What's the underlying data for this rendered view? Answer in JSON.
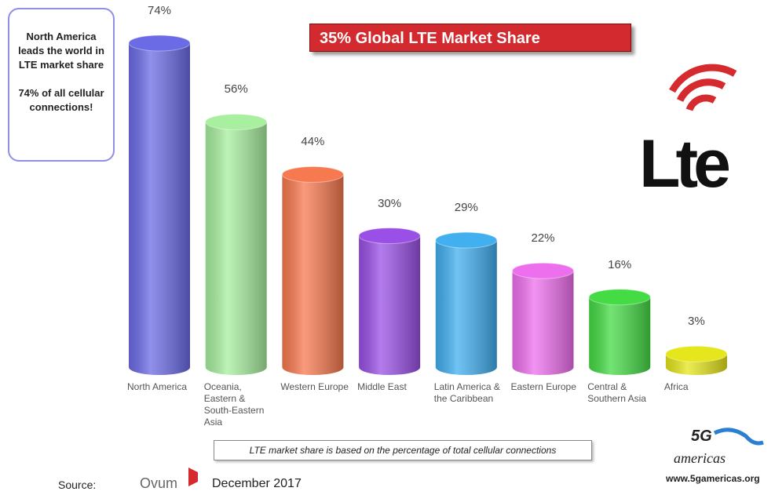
{
  "chart_data": {
    "type": "bar",
    "title": "35% Global LTE Market Share",
    "callout": [
      "North America leads the world in LTE market share",
      "74% of all cellular connections!"
    ],
    "note": "LTE market share is based on the percentage of total cellular connections",
    "source": {
      "label": "Source:",
      "name": "Ovum",
      "date": "December 2017"
    },
    "logos": {
      "lte": "Lte",
      "brand_top": "5G",
      "brand": "americas",
      "url": "www.5gamericas.org"
    },
    "categories": [
      "North America",
      "Oceania, Eastern & South-Eastern Asia",
      "Western Europe",
      "Middle East",
      "Latin America & the Caribbean",
      "Eastern Europe",
      "Central & Southern Asia",
      "Africa"
    ],
    "values": [
      74,
      56,
      44,
      30,
      29,
      22,
      16,
      3
    ],
    "value_labels": [
      "74%",
      "56%",
      "44%",
      "30%",
      "29%",
      "22%",
      "16%",
      "3%"
    ],
    "colors": [
      "#6b6be6",
      "#a8ef9f",
      "#f7794f",
      "#9a50e6",
      "#41aff0",
      "#ee6fee",
      "#45db45",
      "#e6e61c"
    ]
  }
}
